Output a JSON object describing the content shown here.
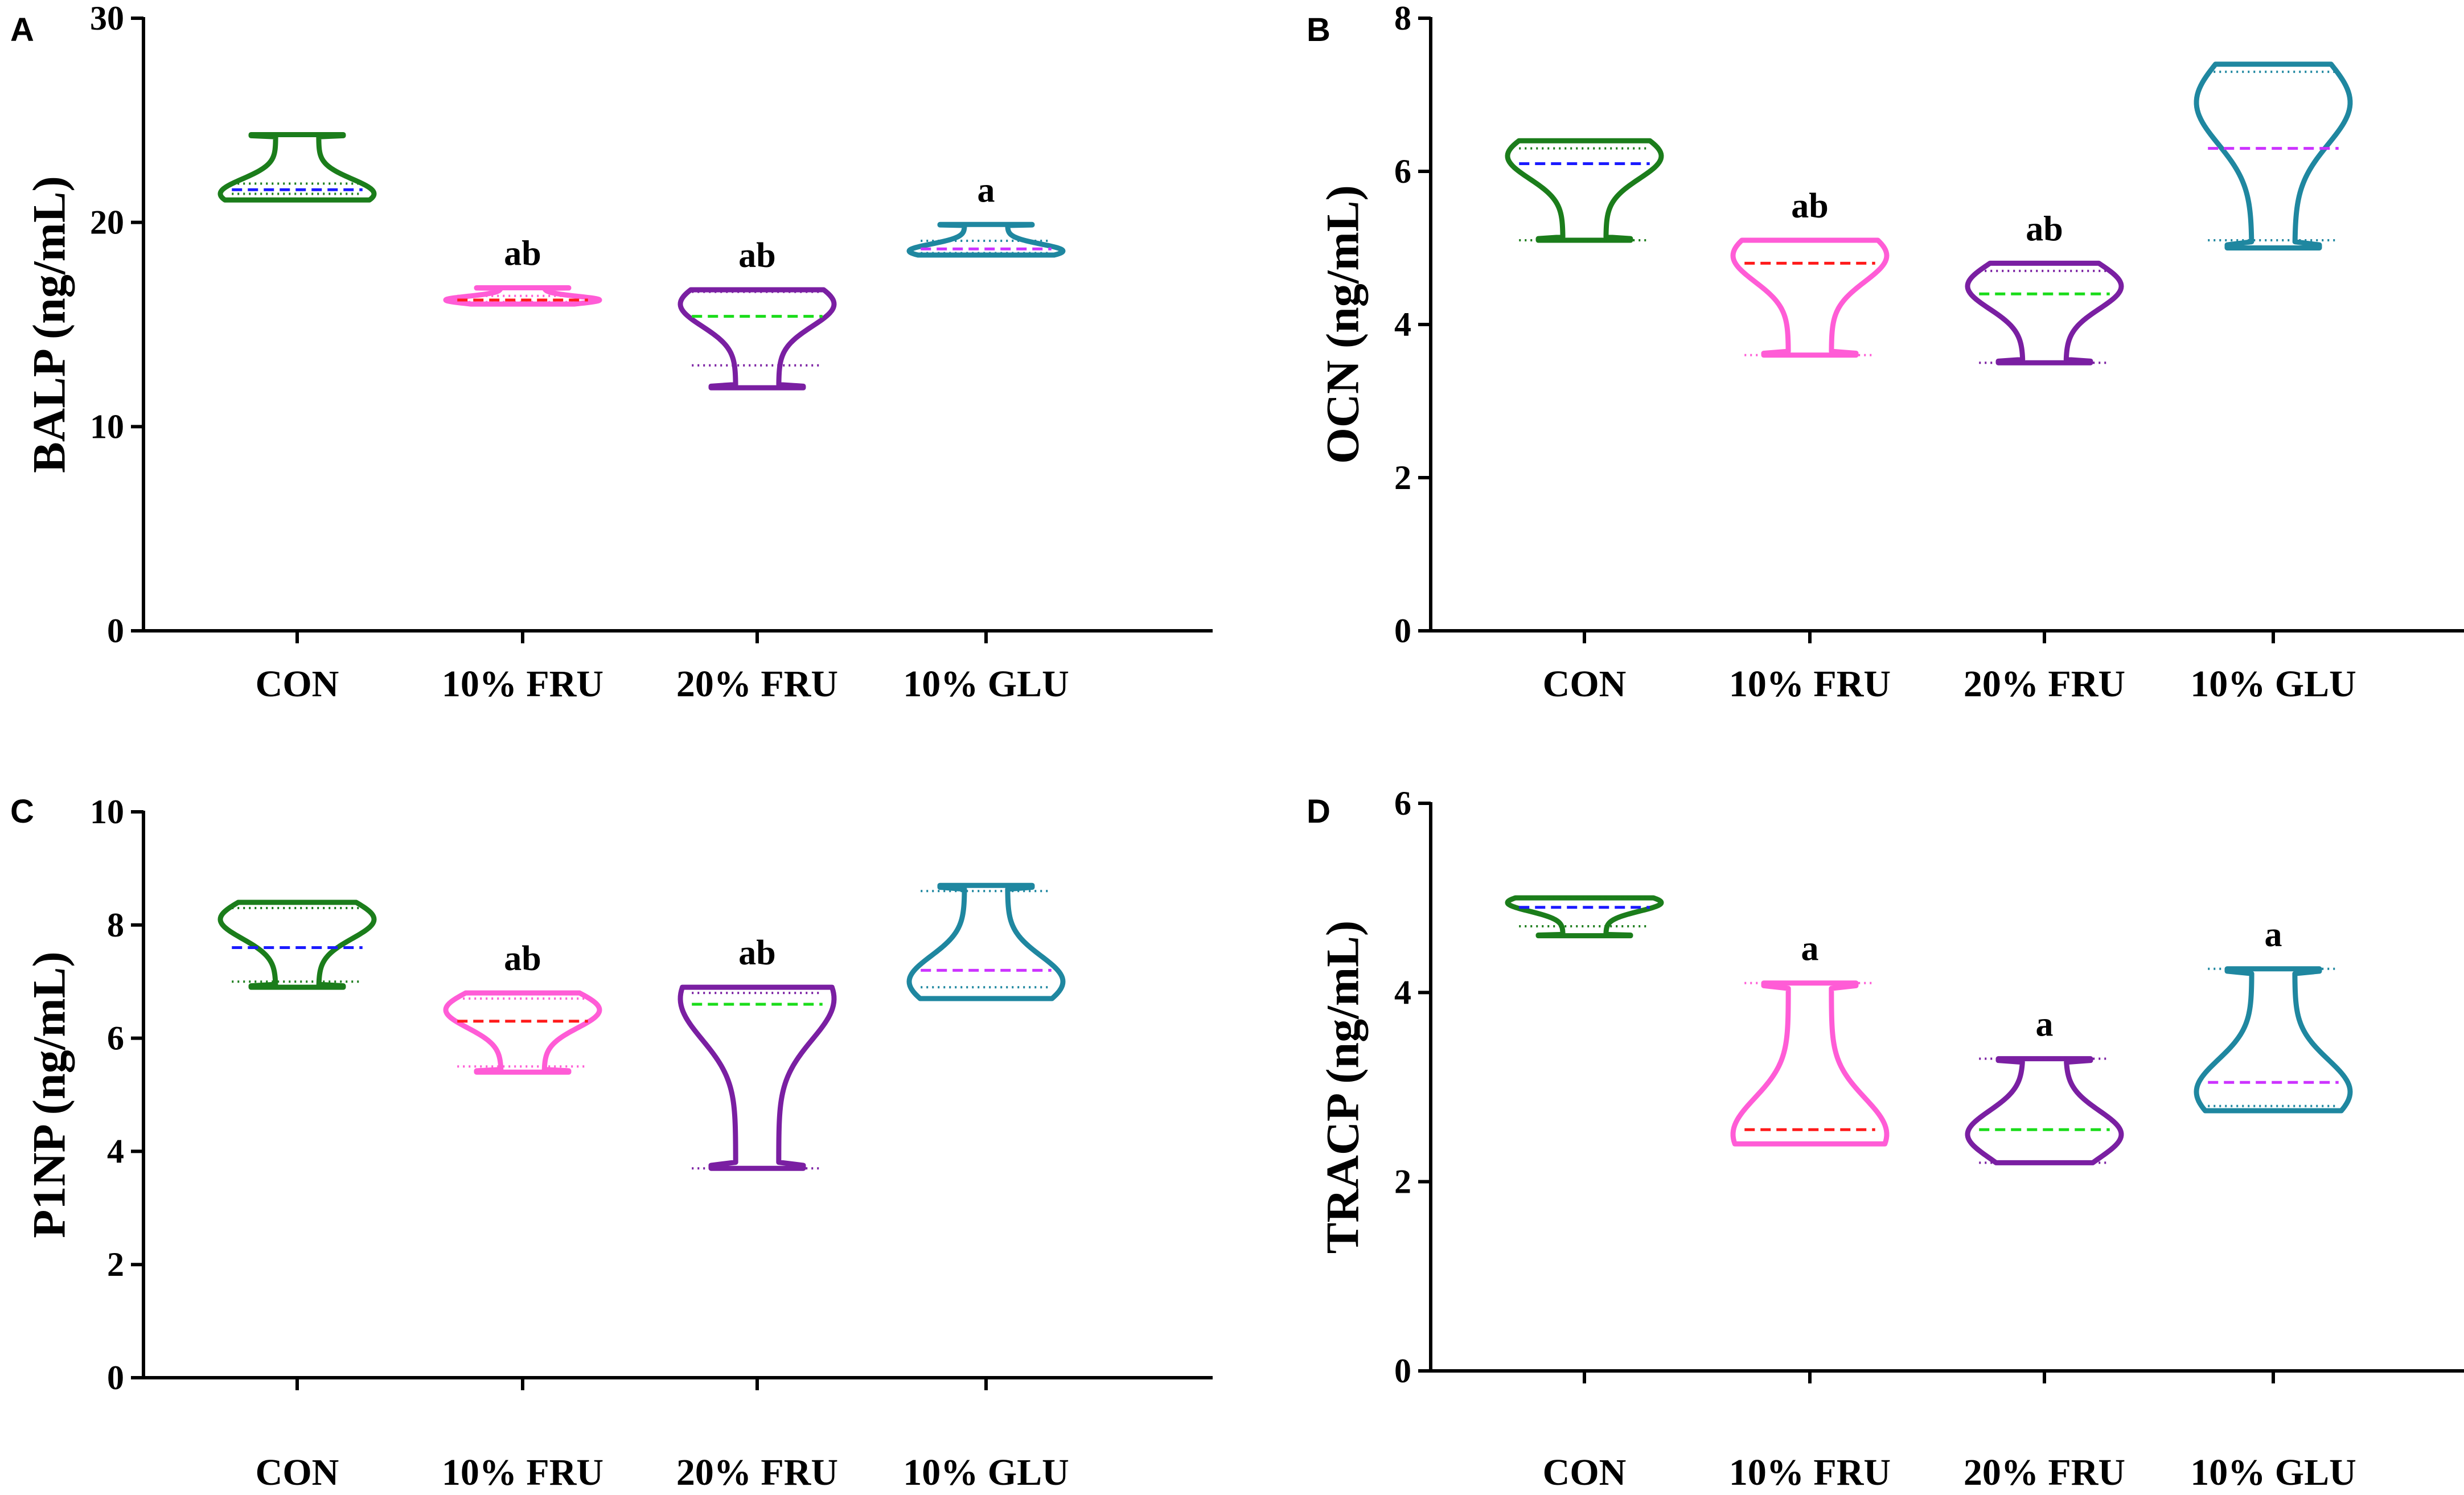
{
  "colors": {
    "CON": "#1b7d1b",
    "10% FRU": "#ff5cd6",
    "20% FRU": "#7a1fa2",
    "10% GLU": "#1f87a0",
    "median_CON": "#1a1aff",
    "median_10% FRU": "#ff1a1a",
    "median_20% FRU": "#1adc1a",
    "median_10% GLU": "#cc33ff",
    "axis": "#000000"
  },
  "chart_data": [
    {
      "panel": "A",
      "type": "violin",
      "ylabel": "BALP (ng/mL)",
      "ylim": [
        0,
        30
      ],
      "yticks": [
        0,
        10,
        20,
        30
      ],
      "categories": [
        "CON",
        "10% FRU",
        "20% FRU",
        "10% GLU"
      ],
      "series": [
        {
          "name": "CON",
          "min": 21.1,
          "q1": 21.4,
          "median": 21.6,
          "q3": 21.9,
          "max": 24.3,
          "mode": 21.4,
          "sig": ""
        },
        {
          "name": "10% FRU",
          "min": 16.0,
          "q1": 16.1,
          "median": 16.2,
          "q3": 16.4,
          "max": 16.8,
          "mode": 16.2,
          "sig": "ab"
        },
        {
          "name": "20% FRU",
          "min": 11.9,
          "q1": 13.0,
          "median": 15.4,
          "q3": 16.6,
          "max": 16.7,
          "mode": 16.0,
          "sig": "ab"
        },
        {
          "name": "10% GLU",
          "min": 18.4,
          "q1": 18.5,
          "median": 18.7,
          "q3": 19.1,
          "max": 19.9,
          "mode": 18.6,
          "sig": "a"
        }
      ]
    },
    {
      "panel": "B",
      "type": "violin",
      "ylabel": "OCN (ng/mL)",
      "ylim": [
        0,
        8
      ],
      "yticks": [
        0,
        2,
        4,
        6,
        8
      ],
      "categories": [
        "CON",
        "10% FRU",
        "20% FRU",
        "10% GLU"
      ],
      "series": [
        {
          "name": "CON",
          "min": 5.1,
          "q1": 5.1,
          "median": 6.1,
          "q3": 6.3,
          "max": 6.4,
          "mode": 6.2,
          "sig": ""
        },
        {
          "name": "10% FRU",
          "min": 3.6,
          "q1": 3.6,
          "median": 4.8,
          "q3": 5.1,
          "max": 5.1,
          "mode": 4.9,
          "sig": "ab"
        },
        {
          "name": "20% FRU",
          "min": 3.5,
          "q1": 3.5,
          "median": 4.4,
          "q3": 4.7,
          "max": 4.8,
          "mode": 4.5,
          "sig": "ab"
        },
        {
          "name": "10% GLU",
          "min": 5.0,
          "q1": 5.1,
          "median": 6.3,
          "q3": 7.3,
          "max": 7.4,
          "mode": 6.9,
          "sig": ""
        }
      ]
    },
    {
      "panel": "C",
      "type": "violin",
      "ylabel": "P1NP (ng/mL)",
      "ylim": [
        0,
        10
      ],
      "yticks": [
        0,
        2,
        4,
        6,
        8,
        10
      ],
      "categories": [
        "CON",
        "10% FRU",
        "20% FRU",
        "10% GLU"
      ],
      "series": [
        {
          "name": "CON",
          "min": 6.9,
          "q1": 7.0,
          "median": 7.6,
          "q3": 8.3,
          "max": 8.4,
          "mode": 8.1,
          "sig": ""
        },
        {
          "name": "10% FRU",
          "min": 5.4,
          "q1": 5.5,
          "median": 6.3,
          "q3": 6.7,
          "max": 6.8,
          "mode": 6.5,
          "sig": "ab"
        },
        {
          "name": "20% FRU",
          "min": 3.7,
          "q1": 3.7,
          "median": 6.6,
          "q3": 6.8,
          "max": 6.9,
          "mode": 6.7,
          "sig": "ab"
        },
        {
          "name": "10% GLU",
          "min": 6.7,
          "q1": 6.9,
          "median": 7.2,
          "q3": 8.6,
          "max": 8.7,
          "mode": 7.0,
          "sig": ""
        }
      ]
    },
    {
      "panel": "D",
      "type": "violin",
      "ylabel": "TRACP (ng/mL)",
      "ylim": [
        0,
        6
      ],
      "yticks": [
        0,
        2,
        4,
        6
      ],
      "categories": [
        "CON",
        "10% FRU",
        "20% FRU",
        "10% GLU"
      ],
      "series": [
        {
          "name": "CON",
          "min": 4.6,
          "q1": 4.7,
          "median": 4.9,
          "q3": 5.0,
          "max": 5.0,
          "mode": 4.95,
          "sig": ""
        },
        {
          "name": "10% FRU",
          "min": 2.4,
          "q1": 2.4,
          "median": 2.55,
          "q3": 4.1,
          "max": 4.1,
          "mode": 2.5,
          "sig": "a"
        },
        {
          "name": "20% FRU",
          "min": 2.2,
          "q1": 2.2,
          "median": 2.55,
          "q3": 3.3,
          "max": 3.3,
          "mode": 2.5,
          "sig": "a"
        },
        {
          "name": "10% GLU",
          "min": 2.75,
          "q1": 2.8,
          "median": 3.05,
          "q3": 4.25,
          "max": 4.25,
          "mode": 2.95,
          "sig": "a"
        }
      ]
    }
  ]
}
